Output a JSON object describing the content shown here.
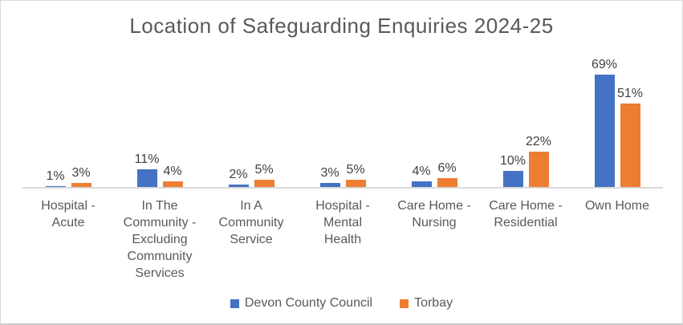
{
  "chart": {
    "title": "Location of Safeguarding Enquiries 2024-25"
  },
  "chart_data": {
    "type": "bar",
    "title": "Location of Safeguarding Enquiries 2024-25",
    "categories": [
      "Hospital - Acute",
      "In The Community - Excluding Community Services",
      "In A Community Service",
      "Hospital - Mental Health",
      "Care Home - Nursing",
      "Care Home - Residential",
      "Own Home"
    ],
    "category_label_lines": [
      [
        "Hospital -",
        "Acute"
      ],
      [
        "In The",
        "Community -",
        "Excluding",
        "Community",
        "Services"
      ],
      [
        "In A",
        "Community",
        "Service"
      ],
      [
        "Hospital -",
        "Mental",
        "Health"
      ],
      [
        "Care Home -",
        "Nursing"
      ],
      [
        "Care Home -",
        "Residential"
      ],
      [
        "Own Home"
      ]
    ],
    "series": [
      {
        "name": "Devon County Council",
        "color": "#4472C4",
        "values": [
          1,
          11,
          2,
          3,
          4,
          10,
          69
        ]
      },
      {
        "name": "Torbay",
        "color": "#ED7D31",
        "values": [
          3,
          4,
          5,
          5,
          6,
          22,
          51
        ]
      }
    ],
    "value_suffix": "%",
    "data_labels": true,
    "xlabel": "",
    "ylabel": "",
    "ylim": [
      0,
      75
    ],
    "grid": false,
    "y_axis_visible": false,
    "legend_position": "bottom",
    "colors": {
      "title_text": "#595959",
      "data_label_text": "#404040",
      "category_text": "#595959",
      "axis_line": "#D9D9D9",
      "frame_border": "#D9D9D9"
    }
  }
}
